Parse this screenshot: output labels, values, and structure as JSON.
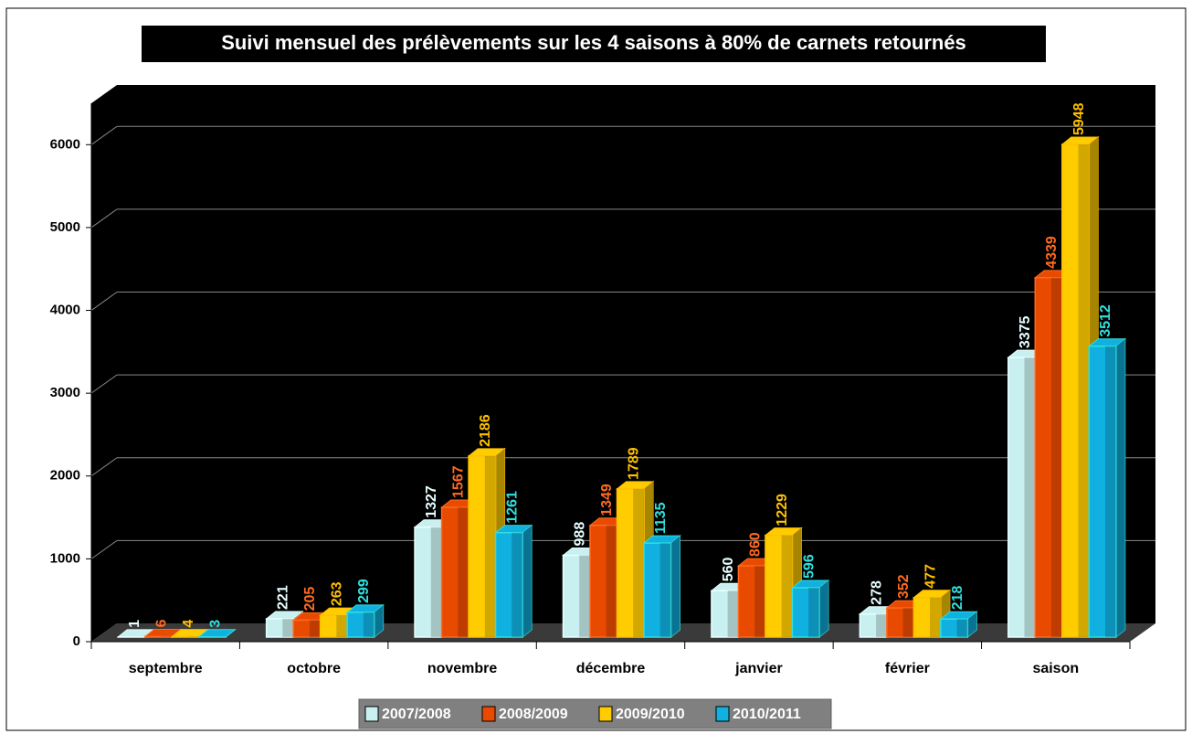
{
  "chart_data": {
    "type": "bar3d",
    "title": "Suivi mensuel des prélèvements sur les 4 saisons à 80% de carnets retournés",
    "categories": [
      "septembre",
      "octobre",
      "novembre",
      "décembre",
      "janvier",
      "février",
      "saison"
    ],
    "series": [
      {
        "name": "2007/2008",
        "color": "#c8f0f0",
        "label_color": "#e8ffff",
        "values": [
          1,
          221,
          1327,
          988,
          560,
          278,
          3375
        ]
      },
      {
        "name": "2008/2009",
        "color": "#e84a00",
        "label_color": "#ff6a20",
        "values": [
          6,
          205,
          1567,
          1349,
          860,
          352,
          4339
        ]
      },
      {
        "name": "2009/2010",
        "color": "#ffcc00",
        "label_color": "#ffc000",
        "values": [
          4,
          263,
          2186,
          1789,
          1229,
          477,
          5948
        ]
      },
      {
        "name": "2010/2011",
        "color": "#10b0e0",
        "label_color": "#30e0e0",
        "values": [
          3,
          299,
          1261,
          1135,
          596,
          218,
          3512
        ]
      }
    ],
    "ylim": [
      0,
      6500
    ],
    "yticks": [
      0,
      1000,
      2000,
      3000,
      4000,
      5000,
      6000
    ],
    "grid": true,
    "legend": "bottom"
  }
}
